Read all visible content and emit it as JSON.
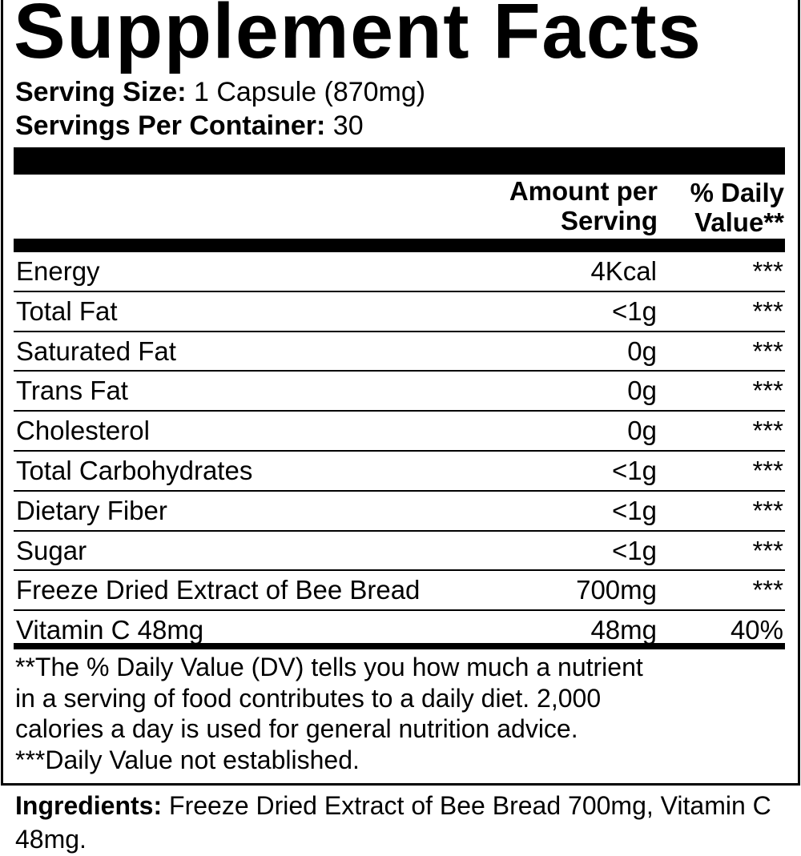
{
  "title": "Supplement Facts",
  "serving_size": {
    "label": "Serving Size:",
    "value": " 1 Capsule (870mg)"
  },
  "servings_per_container": {
    "label": "Servings Per Container:",
    "value": " 30"
  },
  "headers": {
    "amount_line1": "Amount per",
    "amount_line2": "Serving",
    "dv_line1": "% Daily",
    "dv_line2": "Value**"
  },
  "rows": [
    {
      "name": "Energy",
      "amount": "4Kcal",
      "dv": "***"
    },
    {
      "name": "Total Fat",
      "amount": "<1g",
      "dv": "***"
    },
    {
      "name": "Saturated Fat",
      "amount": "0g",
      "dv": "***"
    },
    {
      "name": "Trans Fat",
      "amount": "0g",
      "dv": "***"
    },
    {
      "name": "Cholesterol",
      "amount": "0g",
      "dv": "***"
    },
    {
      "name": "Total Carbohydrates",
      "amount": "<1g",
      "dv": "***"
    },
    {
      "name": "Dietary Fiber",
      "amount": "<1g",
      "dv": "***"
    },
    {
      "name": "Sugar",
      "amount": "<1g",
      "dv": "***"
    },
    {
      "name": "Freeze Dried Extract of Bee Bread",
      "amount": "700mg",
      "dv": "***"
    },
    {
      "name": "Vitamin C 48mg",
      "amount": "48mg",
      "dv": "40%"
    }
  ],
  "footnotes": [
    "**The % Daily Value (DV) tells you how much a nutrient",
    "in a serving of food contributes to a daily diet. 2,000",
    "calories a day is used for general nutrition advice.",
    "***Daily Value not established."
  ],
  "ingredients": {
    "label": "Ingredients:",
    "text": " Freeze Dried Extract of Bee Bread 700mg, Vitamin C 48mg."
  }
}
